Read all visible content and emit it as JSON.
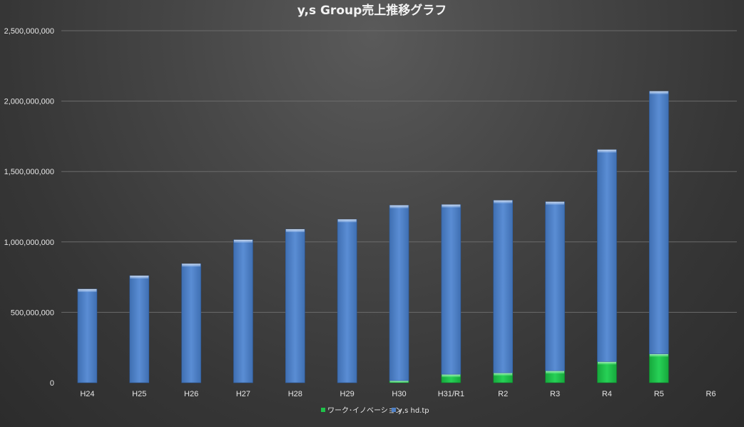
{
  "chart_data": {
    "type": "bar",
    "stacked": true,
    "title": "y,s Group売上推移グラフ",
    "xlabel": "",
    "ylabel": "",
    "categories": [
      "H24",
      "H25",
      "H26",
      "H27",
      "H28",
      "H29",
      "H30",
      "H31/R1",
      "R2",
      "R3",
      "R4",
      "R5",
      "R6"
    ],
    "ylim": [
      0,
      2500000000
    ],
    "yticks": [
      0,
      500000000,
      1000000000,
      1500000000,
      2000000000,
      2500000000
    ],
    "ytick_labels": [
      "0",
      "500,000,000",
      "1,000,000,000",
      "1,500,000,000",
      "2,000,000,000",
      "2,500,000,000"
    ],
    "grid": true,
    "legend_position": "bottom",
    "series": [
      {
        "name": "ワーク･イノベーション",
        "color": "#1fc24a",
        "values": [
          0,
          0,
          0,
          0,
          0,
          0,
          15000000,
          60000000,
          70000000,
          85000000,
          150000000,
          205000000,
          0
        ]
      },
      {
        "name": "y,s hd.tp",
        "color": "#4f81c7",
        "values": [
          665000000,
          760000000,
          845000000,
          1015000000,
          1090000000,
          1160000000,
          1245000000,
          1205000000,
          1225000000,
          1200000000,
          1505000000,
          1865000000,
          0
        ]
      }
    ]
  }
}
